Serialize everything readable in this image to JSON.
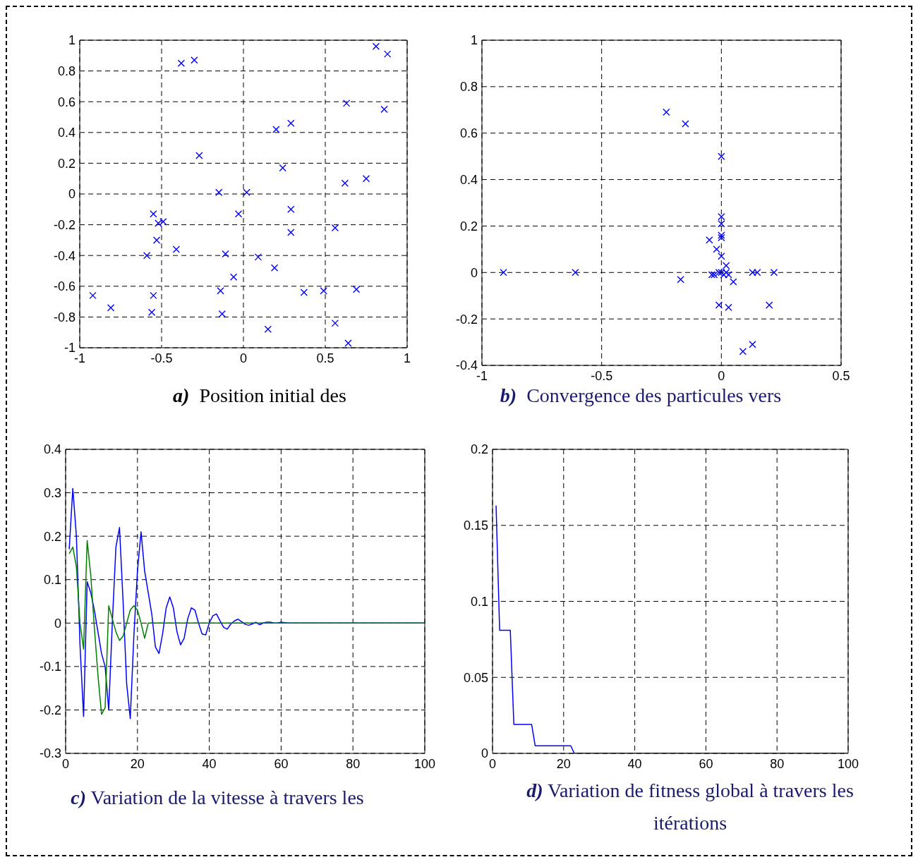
{
  "chart_data": [
    {
      "type": "scatter",
      "title": "a)  Position initial des",
      "marker": "cross",
      "grid": true,
      "xlim": [
        -1,
        1
      ],
      "xticks": [
        -1,
        -0.5,
        0,
        0.5,
        1
      ],
      "ylim": [
        -1,
        1
      ],
      "yticks": [
        -1,
        -0.8,
        -0.6,
        -0.4,
        -0.2,
        0,
        0.2,
        0.4,
        0.6,
        0.8,
        1
      ],
      "series": [
        {
          "color": "#0000ff",
          "x": [
            -0.38,
            -0.3,
            0.81,
            0.88,
            0.63,
            0.86,
            0.2,
            0.29,
            -0.27,
            0.24,
            0.62,
            0.75,
            -0.15,
            0.02,
            0.29,
            -0.03,
            -0.55,
            -0.52,
            -0.49,
            -0.53,
            0.29,
            0.56,
            -0.59,
            -0.41,
            -0.11,
            0.09,
            0.19,
            -0.06,
            -0.14,
            0.37,
            0.49,
            0.69,
            -0.92,
            -0.55,
            -0.81,
            -0.56,
            -0.13,
            0.15,
            0.56,
            0.64
          ],
          "values": [
            0.85,
            0.87,
            0.96,
            0.91,
            0.59,
            0.55,
            0.42,
            0.46,
            0.25,
            0.17,
            0.07,
            0.1,
            0.01,
            0.01,
            -0.1,
            -0.13,
            -0.13,
            -0.19,
            -0.18,
            -0.3,
            -0.25,
            -0.22,
            -0.4,
            -0.36,
            -0.39,
            -0.41,
            -0.48,
            -0.54,
            -0.63,
            -0.64,
            -0.63,
            -0.62,
            -0.66,
            -0.66,
            -0.74,
            -0.77,
            -0.78,
            -0.88,
            -0.84,
            -0.97
          ]
        }
      ]
    },
    {
      "type": "scatter",
      "title": "b)  Convergence des particules vers",
      "marker": "cross",
      "grid": true,
      "xlim": [
        -1,
        0.5
      ],
      "xticks": [
        -1,
        -0.5,
        0,
        0.5
      ],
      "ylim": [
        -0.4,
        1
      ],
      "yticks": [
        -0.4,
        -0.2,
        0,
        0.2,
        0.4,
        0.6,
        0.8,
        1
      ],
      "series": [
        {
          "color": "#0000ff",
          "x": [
            -0.91,
            -0.61,
            -0.23,
            -0.15,
            0,
            0,
            0,
            0,
            0,
            -0.05,
            -0.02,
            0,
            0.02,
            -0.17,
            -0.04,
            -0.03,
            0,
            0.01,
            0.02,
            -0.01,
            0.03,
            0.05,
            0.13,
            0.15,
            0.22,
            -0.01,
            0.03,
            0.2,
            0.09,
            0.13
          ],
          "values": [
            0,
            0,
            0.69,
            0.64,
            0.5,
            0.24,
            0.21,
            0.16,
            0.15,
            0.14,
            0.1,
            0.07,
            0.03,
            -0.03,
            -0.01,
            -0.01,
            0,
            -0.01,
            0,
            0,
            -0.01,
            -0.04,
            0,
            0,
            0,
            -0.14,
            -0.15,
            -0.14,
            -0.34,
            -0.31
          ]
        }
      ]
    },
    {
      "type": "line",
      "title": "c) Variation de la vitesse à travers les",
      "marker": "none",
      "line_style": "solid",
      "grid": true,
      "xlim": [
        0,
        100
      ],
      "xticks": [
        0,
        20,
        40,
        60,
        80,
        100
      ],
      "ylim": [
        -0.3,
        0.4
      ],
      "yticks": [
        -0.3,
        -0.2,
        -0.1,
        0,
        0.1,
        0.2,
        0.3,
        0.4
      ],
      "series": [
        {
          "color": "#0000ff",
          "x": [
            1,
            2,
            3,
            4,
            5,
            6,
            7,
            8,
            9,
            10,
            11,
            12,
            13,
            14,
            15,
            16,
            17,
            18,
            19,
            20,
            21,
            22,
            23,
            24,
            25,
            26,
            27,
            28,
            29,
            30,
            31,
            32,
            33,
            34,
            35,
            36,
            37,
            38,
            39,
            40,
            41,
            42,
            43,
            44,
            45,
            46,
            47,
            48,
            49,
            50,
            51,
            52,
            53,
            54,
            55,
            56,
            57,
            58,
            59,
            60,
            61,
            62,
            100
          ],
          "values": [
            0.17,
            0.31,
            0.2,
            -0.05,
            -0.215,
            0.095,
            0.07,
            0.03,
            -0.02,
            -0.07,
            -0.1,
            -0.2,
            0,
            0.175,
            0.22,
            0.05,
            -0.14,
            -0.22,
            -0.03,
            0.12,
            0.21,
            0.12,
            0.07,
            0.02,
            -0.055,
            -0.07,
            -0.025,
            0.035,
            0.06,
            0.035,
            -0.02,
            -0.05,
            -0.035,
            0.01,
            0.035,
            0.03,
            0,
            -0.025,
            -0.027,
            0,
            0.017,
            0.021,
            0.005,
            -0.01,
            -0.014,
            -0.002,
            0.005,
            0.009,
            0.003,
            -0.003,
            -0.005,
            -0.002,
            0.002,
            -0.004,
            0,
            0.002,
            0.002,
            0,
            0,
            0.002,
            0.001,
            0,
            0
          ]
        },
        {
          "color": "#008000",
          "x": [
            1,
            2,
            3,
            4,
            5,
            6,
            7,
            8,
            9,
            10,
            11,
            12,
            13,
            14,
            15,
            16,
            17,
            18,
            19,
            20,
            21,
            22,
            23,
            100
          ],
          "values": [
            0.16,
            0.175,
            0.13,
            0,
            -0.06,
            0.19,
            0.11,
            -0.01,
            -0.12,
            -0.21,
            -0.195,
            0.04,
            0.01,
            -0.02,
            -0.04,
            -0.03,
            0,
            0.03,
            0.04,
            0.03,
            0,
            -0.035,
            0,
            0
          ]
        }
      ]
    },
    {
      "type": "line",
      "title": "d) Variation de fitness global à travers les itérations",
      "marker": "none",
      "line_style": "solid",
      "grid": true,
      "xlim": [
        0,
        100
      ],
      "xticks": [
        0,
        20,
        40,
        60,
        80,
        100
      ],
      "ylim": [
        0,
        0.2
      ],
      "yticks": [
        0,
        0.05,
        0.1,
        0.15,
        0.2
      ],
      "series": [
        {
          "color": "#0000ff",
          "x": [
            1,
            2,
            5,
            6,
            11,
            12,
            22,
            23,
            100
          ],
          "values": [
            0.163,
            0.081,
            0.081,
            0.019,
            0.019,
            0.005,
            0.005,
            0,
            0
          ]
        }
      ]
    }
  ]
}
